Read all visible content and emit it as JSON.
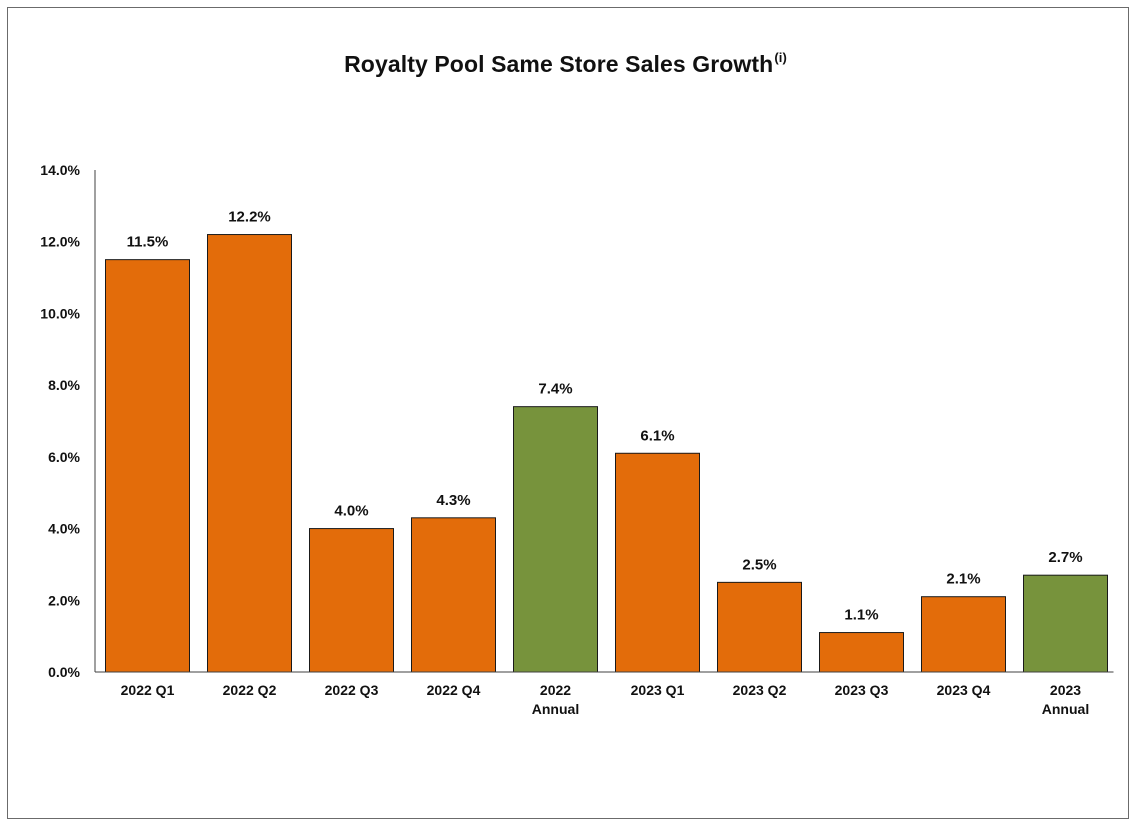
{
  "chart_data": {
    "type": "bar",
    "title": "Royalty Pool Same Store Sales Growth",
    "title_superscript": "(i)",
    "categories": [
      [
        "2022 Q1"
      ],
      [
        "2022 Q2"
      ],
      [
        "2022 Q3"
      ],
      [
        "2022 Q4"
      ],
      [
        "2022",
        "Annual"
      ],
      [
        "2023 Q1"
      ],
      [
        "2023 Q2"
      ],
      [
        "2023 Q3"
      ],
      [
        "2023 Q4"
      ],
      [
        "2023",
        "Annual"
      ]
    ],
    "values": [
      11.5,
      12.2,
      4.0,
      4.3,
      7.4,
      6.1,
      2.5,
      1.1,
      2.1,
      2.7
    ],
    "data_labels": [
      "11.5%",
      "12.2%",
      "4.0%",
      "4.3%",
      "7.4%",
      "6.1%",
      "2.5%",
      "1.1%",
      "2.1%",
      "2.7%"
    ],
    "bar_kind": [
      "quarter",
      "quarter",
      "quarter",
      "quarter",
      "annual",
      "quarter",
      "quarter",
      "quarter",
      "quarter",
      "annual"
    ],
    "colors": {
      "quarter": "#e36c0a",
      "annual": "#77933c",
      "bar_outline": "#1a1a1a",
      "axis": "#404040"
    },
    "ylim": [
      0,
      14
    ],
    "y_ticks": [
      0,
      2,
      4,
      6,
      8,
      10,
      12,
      14
    ],
    "y_tick_labels": [
      "0.0%",
      "2.0%",
      "4.0%",
      "6.0%",
      "8.0%",
      "10.0%",
      "12.0%",
      "14.0%"
    ],
    "xlabel": "",
    "ylabel": "",
    "grid": false,
    "legend": "none"
  }
}
